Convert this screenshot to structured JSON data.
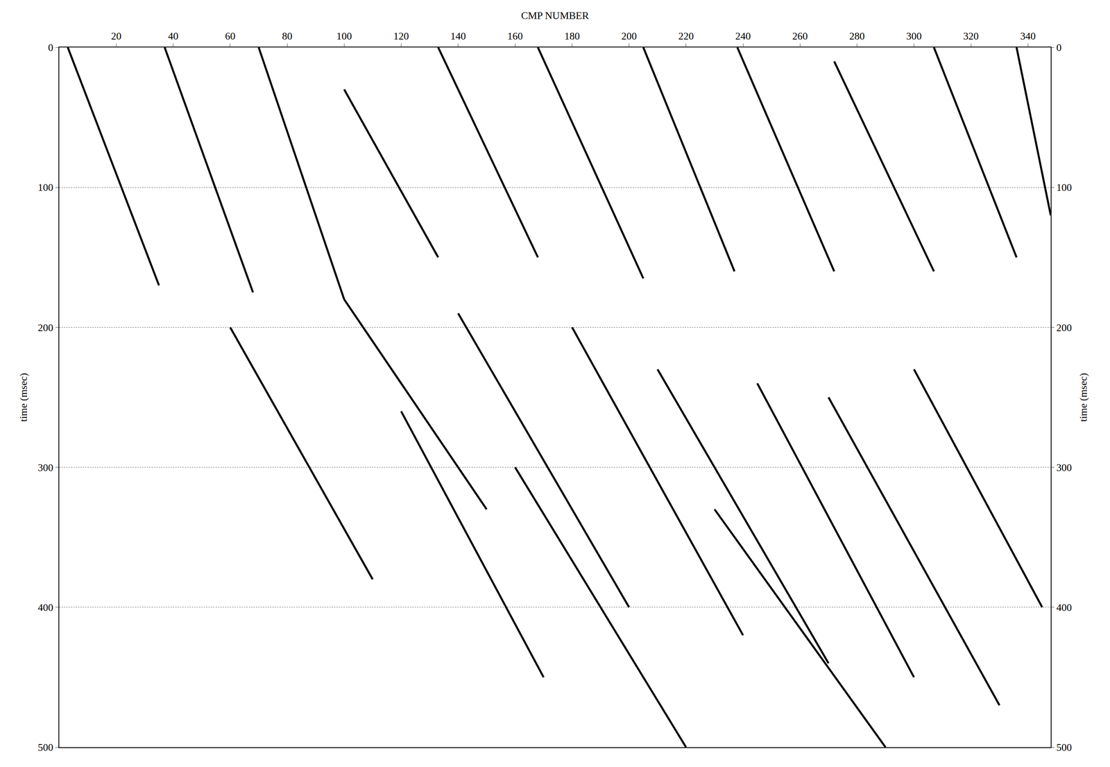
{
  "chart_data": {
    "type": "line",
    "x_label": "CMP NUMBER",
    "y_label": "time (msec)",
    "y2_label": "time (msec)",
    "xlim": [
      0,
      348
    ],
    "xticks": [
      20,
      40,
      60,
      80,
      100,
      120,
      140,
      160,
      180,
      200,
      220,
      240,
      260,
      280,
      300,
      320,
      340
    ],
    "ylim": [
      500,
      0
    ],
    "yticks": [
      0,
      100,
      200,
      300,
      400,
      500
    ],
    "y2lim": [
      500,
      0
    ],
    "y2ticks": [
      0,
      100,
      200,
      300,
      400,
      500
    ],
    "grid": true,
    "series": [
      {
        "color": "#000000",
        "x": [
          3,
          35
        ],
        "values": [
          0,
          170
        ]
      },
      {
        "color": "#000000",
        "x": [
          37,
          68
        ],
        "values": [
          0,
          175
        ]
      },
      {
        "color": "#000000",
        "x": [
          70,
          100
        ],
        "values": [
          0,
          180
        ]
      },
      {
        "color": "#000000",
        "x": [
          100,
          133
        ],
        "values": [
          30,
          150
        ]
      },
      {
        "color": "#000000",
        "x": [
          133,
          168
        ],
        "values": [
          0,
          150
        ]
      },
      {
        "color": "#000000",
        "x": [
          168,
          205
        ],
        "values": [
          0,
          165
        ]
      },
      {
        "color": "#000000",
        "x": [
          205,
          237
        ],
        "values": [
          0,
          160
        ]
      },
      {
        "color": "#000000",
        "x": [
          238,
          272
        ],
        "values": [
          0,
          160
        ]
      },
      {
        "color": "#000000",
        "x": [
          272,
          307
        ],
        "values": [
          10,
          160
        ]
      },
      {
        "color": "#000000",
        "x": [
          307,
          336
        ],
        "values": [
          0,
          150
        ]
      },
      {
        "color": "#000000",
        "x": [
          336,
          348
        ],
        "values": [
          0,
          120
        ]
      },
      {
        "color": "#000000",
        "x": [
          60,
          110
        ],
        "values": [
          200,
          380
        ]
      },
      {
        "color": "#000000",
        "x": [
          100,
          150
        ],
        "values": [
          180,
          330
        ]
      },
      {
        "color": "#000000",
        "x": [
          120,
          170
        ],
        "values": [
          260,
          450
        ]
      },
      {
        "color": "#000000",
        "x": [
          140,
          200
        ],
        "values": [
          190,
          400
        ]
      },
      {
        "color": "#000000",
        "x": [
          160,
          220
        ],
        "values": [
          300,
          500
        ]
      },
      {
        "color": "#000000",
        "x": [
          180,
          240
        ],
        "values": [
          200,
          420
        ]
      },
      {
        "color": "#000000",
        "x": [
          210,
          270
        ],
        "values": [
          230,
          440
        ]
      },
      {
        "color": "#000000",
        "x": [
          230,
          290
        ],
        "values": [
          330,
          500
        ]
      },
      {
        "color": "#000000",
        "x": [
          245,
          300
        ],
        "values": [
          240,
          450
        ]
      },
      {
        "color": "#000000",
        "x": [
          270,
          330
        ],
        "values": [
          250,
          470
        ]
      },
      {
        "color": "#000000",
        "x": [
          300,
          345
        ],
        "values": [
          230,
          400
        ]
      }
    ]
  }
}
